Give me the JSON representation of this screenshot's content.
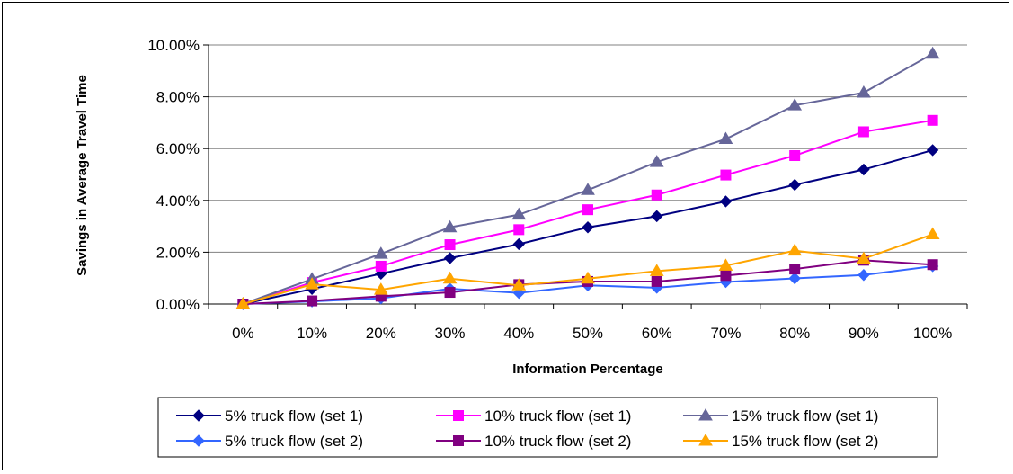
{
  "chart_data": {
    "type": "line",
    "title": "",
    "xlabel": "Information Percentage",
    "ylabel": "Savings in Average Travel Time",
    "categories": [
      "0%",
      "10%",
      "20%",
      "30%",
      "40%",
      "50%",
      "60%",
      "70%",
      "80%",
      "90%",
      "100%"
    ],
    "ylim": [
      0,
      10
    ],
    "yticks": [
      0,
      2,
      4,
      6,
      8,
      10
    ],
    "ytick_labels": [
      "0.00%",
      "2.00%",
      "4.00%",
      "6.00%",
      "8.00%",
      "10.00%"
    ],
    "grid": true,
    "legend_position": "bottom",
    "series": [
      {
        "name": "5% truck flow (set 1)",
        "color": "#000080",
        "marker": "diamond",
        "values": [
          0.0,
          0.58,
          1.17,
          1.77,
          2.31,
          2.96,
          3.39,
          3.96,
          4.6,
          5.19,
          5.94
        ]
      },
      {
        "name": "10% truck flow (set 1)",
        "color": "#FF00FF",
        "marker": "square",
        "values": [
          0.0,
          0.83,
          1.46,
          2.29,
          2.87,
          3.64,
          4.21,
          4.98,
          5.73,
          6.65,
          7.09
        ]
      },
      {
        "name": "15% truck flow (set 1)",
        "color": "#666699",
        "marker": "triangle",
        "values": [
          0.0,
          0.96,
          1.94,
          2.96,
          3.45,
          4.4,
          5.48,
          6.37,
          7.67,
          8.16,
          9.66
        ]
      },
      {
        "name": "5% truck flow (set 2)",
        "color": "#3366FF",
        "marker": "diamond",
        "values": [
          0.0,
          0.1,
          0.22,
          0.59,
          0.43,
          0.72,
          0.63,
          0.85,
          0.99,
          1.12,
          1.46
        ]
      },
      {
        "name": "10% truck flow (set 2)",
        "color": "#800080",
        "marker": "square",
        "values": [
          0.0,
          0.12,
          0.3,
          0.45,
          0.75,
          0.87,
          0.87,
          1.1,
          1.35,
          1.69,
          1.52
        ]
      },
      {
        "name": "15% truck flow (set 2)",
        "color": "#FFA500",
        "marker": "triangle",
        "values": [
          0.0,
          0.76,
          0.55,
          0.98,
          0.72,
          0.98,
          1.27,
          1.48,
          2.06,
          1.75,
          2.69
        ]
      }
    ]
  }
}
